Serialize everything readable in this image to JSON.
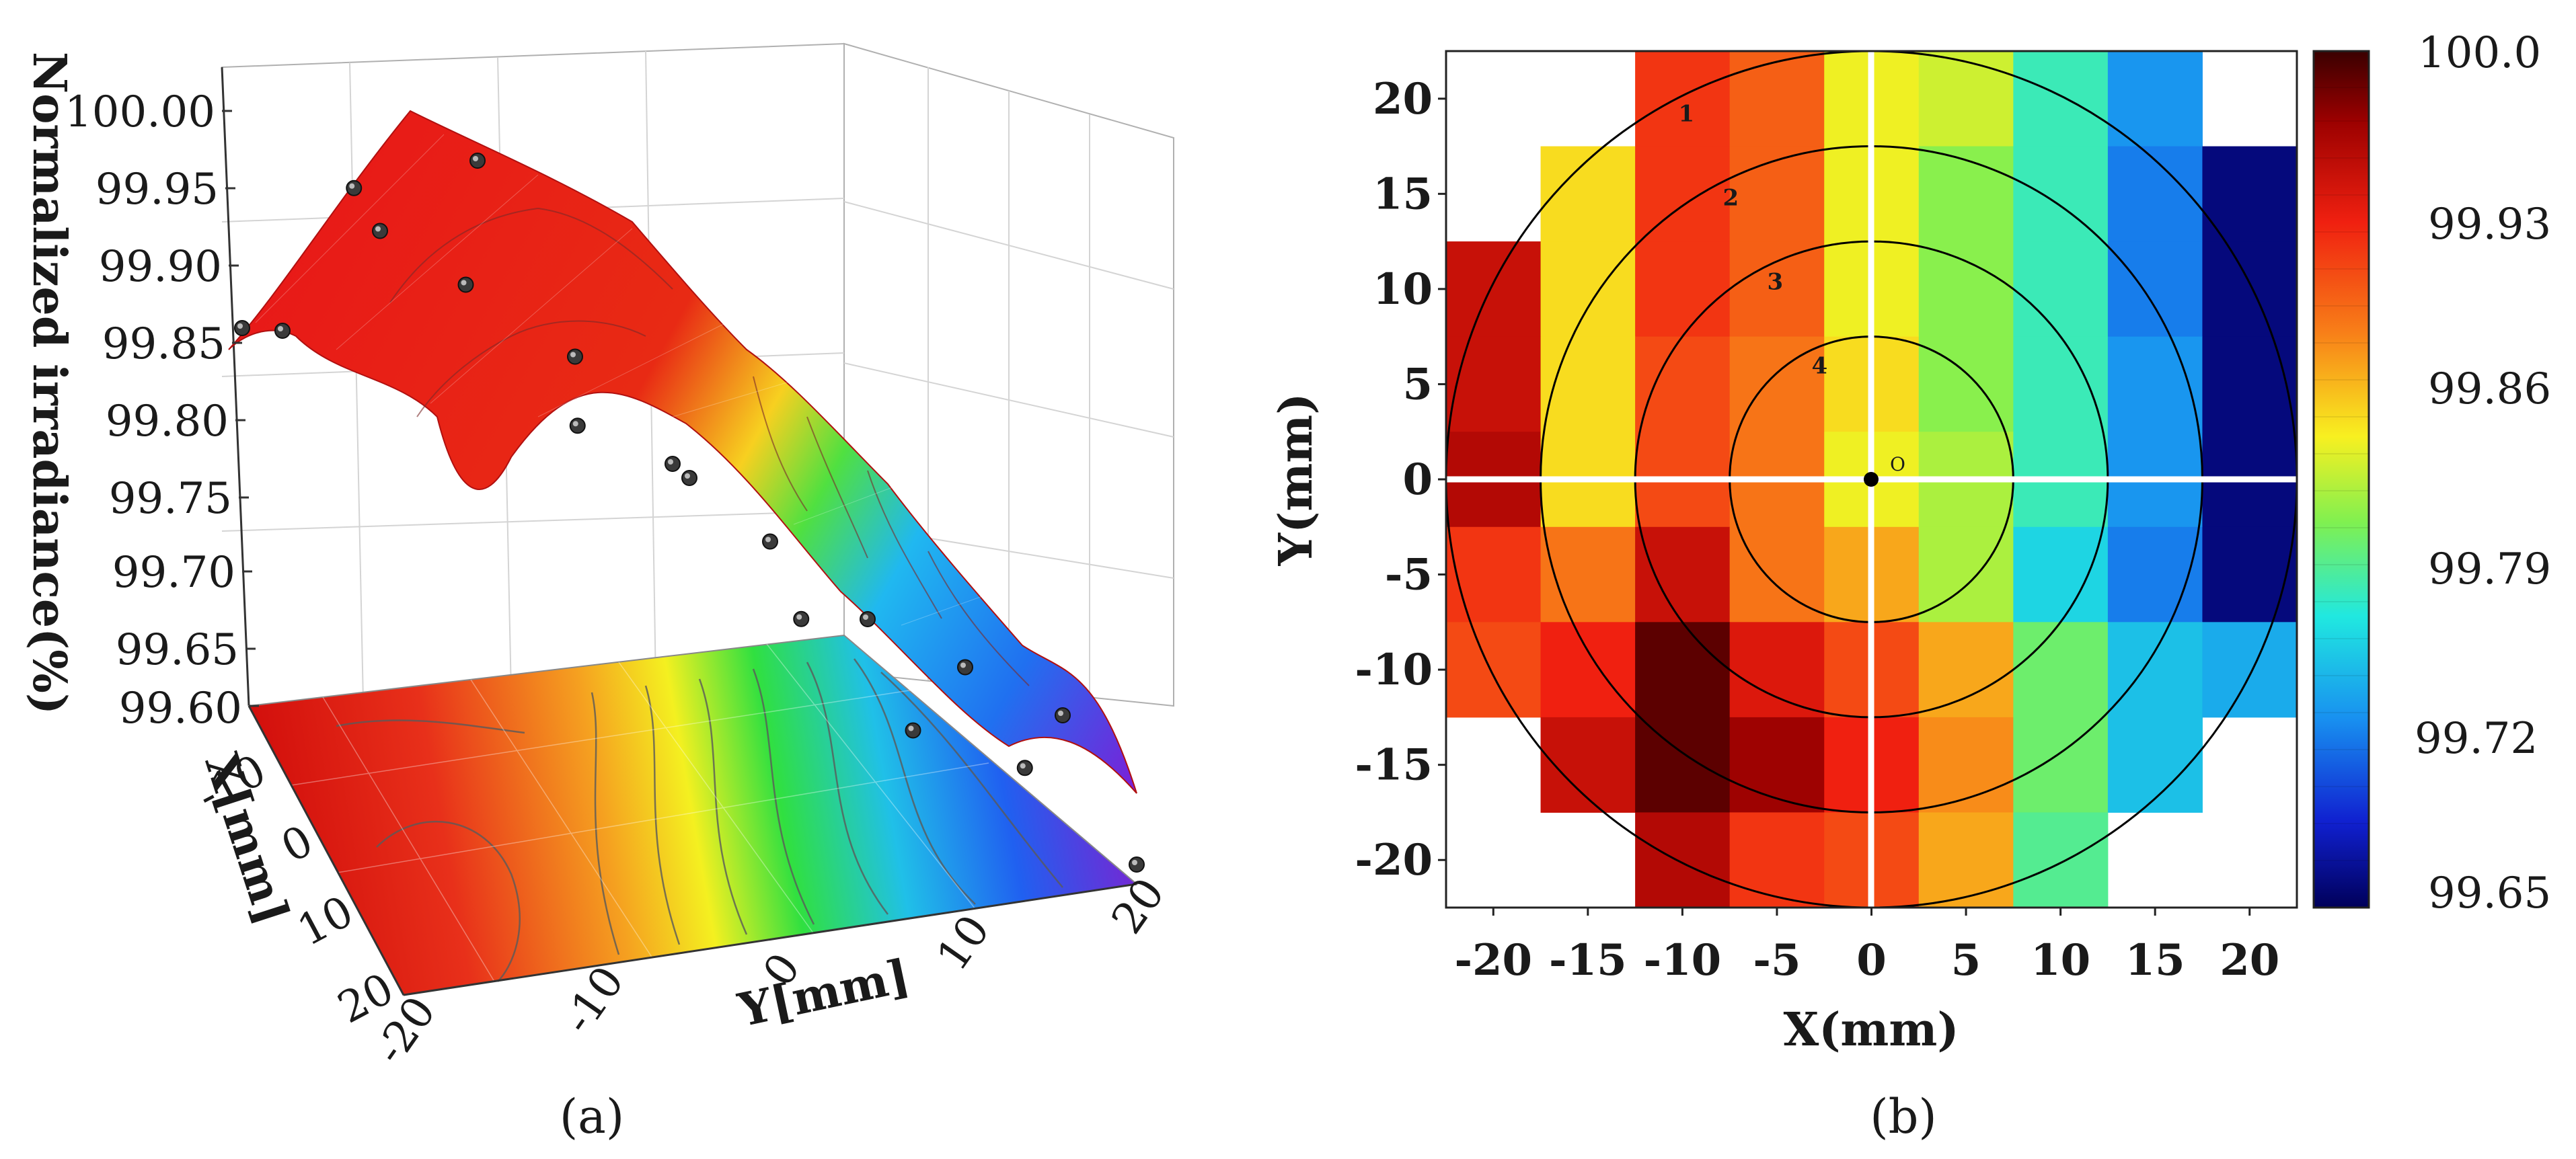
{
  "figure": {
    "panel_labels": [
      "(a)",
      "(b)"
    ],
    "panel_a": {
      "ylabel": "Normalized irradiance(%)",
      "xlabel": "X[mm]",
      "ylabel2": "Y[mm]"
    }
  },
  "chart_data": [
    {
      "type": "surface",
      "panel": "(a)",
      "zlabel": "Normalized irradiance(%)",
      "xlabel": "X[mm]",
      "ylabel": "Y[mm]",
      "z_ticks": [
        "100.00",
        "99.95",
        "99.90",
        "99.85",
        "99.80",
        "99.75",
        "99.70",
        "99.65",
        "99.60"
      ],
      "x_ticks": [
        "-10",
        "0",
        "10",
        "20"
      ],
      "y_ticks": [
        "-20",
        "-10",
        "0",
        "10",
        "20"
      ],
      "zlim": [
        99.6,
        100.0
      ],
      "xlim": [
        -20,
        20
      ],
      "ylim": [
        -20,
        20
      ],
      "y_samples": [
        -20,
        -15,
        -10,
        -5,
        0,
        5,
        10,
        15,
        20
      ],
      "profile_front": [
        99.86,
        99.97,
        99.92,
        99.84,
        99.82,
        99.74,
        99.68,
        99.67,
        99.62
      ],
      "profile_back": [
        99.84,
        99.92,
        99.98,
        99.86,
        99.8,
        99.76,
        99.72,
        99.7,
        99.68
      ]
    },
    {
      "type": "heatmap",
      "panel": "(b)",
      "xlabel": "X(mm)",
      "ylabel": "Y(mm)",
      "x_ticks": [
        "-20",
        "-15",
        "-10",
        "-5",
        "0",
        "5",
        "10",
        "15",
        "20"
      ],
      "y_ticks": [
        "20",
        "15",
        "10",
        "5",
        "0",
        "-5",
        "-10",
        "-15",
        "-20"
      ],
      "x_centers": [
        -20,
        -15,
        -10,
        -5,
        0,
        5,
        10,
        15,
        20
      ],
      "y_centers": [
        20,
        15,
        10,
        5,
        0,
        -5,
        -10,
        -15,
        -20
      ],
      "grid": [
        [
          null,
          null,
          99.92,
          99.9,
          99.84,
          99.83,
          99.78,
          99.73,
          null
        ],
        [
          null,
          99.85,
          99.92,
          99.9,
          99.84,
          99.81,
          99.78,
          99.72,
          99.66
        ],
        [
          99.95,
          99.85,
          99.92,
          99.9,
          99.84,
          99.81,
          99.78,
          99.72,
          99.66
        ],
        [
          99.95,
          99.85,
          99.91,
          99.89,
          99.85,
          99.81,
          99.78,
          99.73,
          99.66
        ],
        [
          99.96,
          99.85,
          99.91,
          99.89,
          99.84,
          99.82,
          99.78,
          99.73,
          99.66
        ],
        [
          99.92,
          99.89,
          99.95,
          99.89,
          99.87,
          99.82,
          99.76,
          99.72,
          99.66
        ],
        [
          99.91,
          99.93,
          99.99,
          99.94,
          99.91,
          99.87,
          99.8,
          99.75,
          99.74
        ],
        [
          null,
          99.95,
          99.99,
          99.97,
          99.93,
          99.88,
          99.8,
          99.75,
          null
        ],
        [
          null,
          null,
          99.96,
          99.92,
          99.91,
          99.87,
          99.79,
          null,
          null
        ]
      ],
      "clim": [
        99.65,
        100.0
      ],
      "colorbar_ticks": [
        "100.0",
        "99.93",
        "99.86",
        "99.79",
        "99.72",
        "99.65"
      ],
      "circle_labels": [
        "1",
        "2",
        "3",
        "4"
      ],
      "circle_radii_mm": [
        22.5,
        17.5,
        12.5,
        7.5
      ],
      "origin_label": "O"
    }
  ]
}
